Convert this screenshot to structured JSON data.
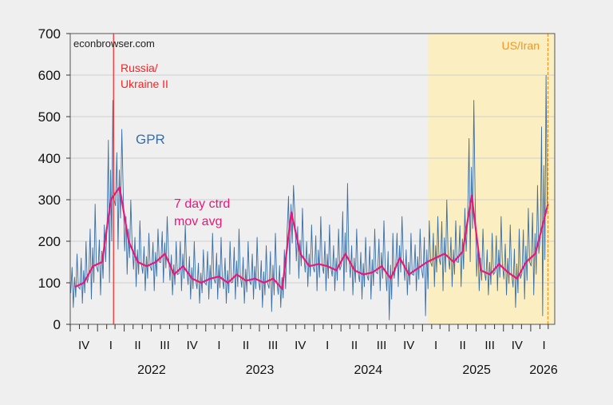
{
  "chart_data": {
    "type": "line",
    "title": "",
    "watermark": "econbrowser.com",
    "xlabel": "",
    "ylabel": "",
    "xlim": [
      "2021-10-01",
      "2026-03-23"
    ],
    "ylim": [
      0,
      700
    ],
    "yticks": [
      0,
      100,
      200,
      300,
      400,
      500,
      600,
      700
    ],
    "grid": true,
    "quarter_labels": [
      "IV",
      "I",
      "II",
      "III",
      "IV",
      "I",
      "II",
      "III",
      "IV",
      "I",
      "II",
      "III",
      "IV",
      "I",
      "II",
      "III",
      "IV",
      "I"
    ],
    "year_labels": [
      "2022",
      "2023",
      "2024",
      "2025",
      "2026"
    ],
    "colors": {
      "gpr": "#3a6ea5",
      "ma": "#e6197a",
      "shade": "#fbefc2",
      "russia": "#ff2020",
      "iran": "#f7941d"
    },
    "series_labels": {
      "gpr": "GPR",
      "ma_line1": "7 day ctrd",
      "ma_line2": "mov avg"
    },
    "events": [
      {
        "date": "2022-02-24",
        "label_line1": "Russia/",
        "label_line2": "Ukraine II",
        "style": "solid"
      },
      {
        "date": "2026-02-28",
        "label_line1": "US/Iran",
        "label_line2": "",
        "style": "dashed"
      }
    ],
    "shaded_from": "2025-01-20",
    "months": [
      "2021-10",
      "2021-11",
      "2021-12",
      "2022-01",
      "2022-02",
      "2022-03",
      "2022-04",
      "2022-05",
      "2022-06",
      "2022-07",
      "2022-08",
      "2022-09",
      "2022-10",
      "2022-11",
      "2022-12",
      "2023-01",
      "2023-02",
      "2023-03",
      "2023-04",
      "2023-05",
      "2023-06",
      "2023-07",
      "2023-08",
      "2023-09",
      "2023-10",
      "2023-11",
      "2023-12",
      "2024-01",
      "2024-02",
      "2024-03",
      "2024-04",
      "2024-05",
      "2024-06",
      "2024-07",
      "2024-08",
      "2024-09",
      "2024-10",
      "2024-11",
      "2024-12",
      "2025-01",
      "2025-02",
      "2025-03",
      "2025-04",
      "2025-05",
      "2025-06",
      "2025-07",
      "2025-08",
      "2025-09",
      "2025-10",
      "2025-11",
      "2025-12",
      "2026-01",
      "2026-02"
    ],
    "gpr_high": [
      170,
      200,
      290,
      240,
      540,
      470,
      300,
      250,
      220,
      230,
      260,
      200,
      240,
      200,
      180,
      220,
      210,
      200,
      230,
      200,
      210,
      190,
      220,
      180,
      335,
      280,
      240,
      260,
      240,
      230,
      340,
      230,
      210,
      230,
      250,
      220,
      260,
      220,
      230,
      250,
      260,
      300,
      250,
      280,
      540,
      230,
      220,
      260,
      240,
      230,
      280,
      335,
      600
    ],
    "gpr_low": [
      40,
      50,
      60,
      70,
      100,
      180,
      120,
      90,
      80,
      80,
      100,
      70,
      80,
      60,
      50,
      60,
      60,
      50,
      60,
      50,
      60,
      40,
      30,
      40,
      120,
      110,
      90,
      80,
      80,
      80,
      80,
      70,
      60,
      60,
      80,
      10,
      90,
      70,
      80,
      20,
      90,
      80,
      90,
      90,
      150,
      80,
      70,
      80,
      70,
      40,
      60,
      70,
      20
    ],
    "ma": [
      90,
      100,
      140,
      150,
      300,
      330,
      200,
      150,
      140,
      150,
      170,
      120,
      140,
      110,
      100,
      110,
      115,
      100,
      120,
      105,
      110,
      100,
      110,
      85,
      270,
      170,
      140,
      145,
      140,
      130,
      170,
      130,
      120,
      125,
      140,
      110,
      160,
      120,
      135,
      150,
      160,
      170,
      150,
      175,
      310,
      130,
      120,
      145,
      125,
      110,
      150,
      170,
      290
    ]
  }
}
